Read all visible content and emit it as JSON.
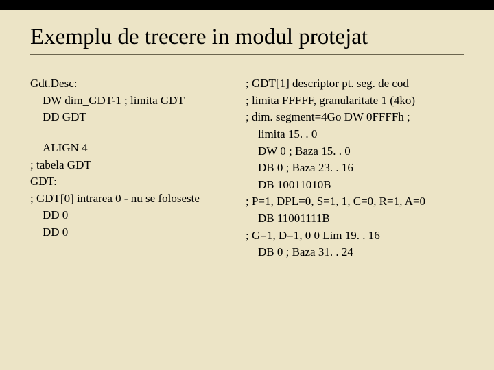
{
  "background_color": "#ece4c6",
  "top_bar_color": "#000000",
  "title": "Exemplu de trecere in modul protejat",
  "title_fontsize": 33,
  "body_fontsize": 17,
  "font_family": "Times New Roman",
  "rule_color": "#6b654f",
  "left": {
    "l1": "Gdt.Desc:",
    "l2": "DW   dim_GDT-1  ; limita GDT",
    "l3": "DD   GDT",
    "l4": "ALIGN 4",
    "l5": "; tabela GDT",
    "l6": "GDT:",
    "l7": "; GDT[0] intrarea 0 - nu se foloseste",
    "l8": "DD   0",
    "l9": "DD   0"
  },
  "right": {
    "r1": " ; GDT[1] descriptor pt. seg. de cod",
    "r2": "; limita FFFFF, granularitate 1 (4ko)",
    "r3": "; dim. segment=4Go DW    0FFFFh ;",
    "r4": "limita 15. . 0",
    "r5": "DW  0   ; Baza 15. . 0",
    "r6": "DB   0    ; Baza 23. . 16",
    "r7": "DB   10011010B",
    "r8": "; P=1, DPL=0, S=1, 1, C=0, R=1, A=0",
    "r9": "DB   11001111B",
    "r10": "; G=1, D=1, 0 0 Lim 19. . 16",
    "r11": "DB   0  ; Baza 31. . 24"
  }
}
